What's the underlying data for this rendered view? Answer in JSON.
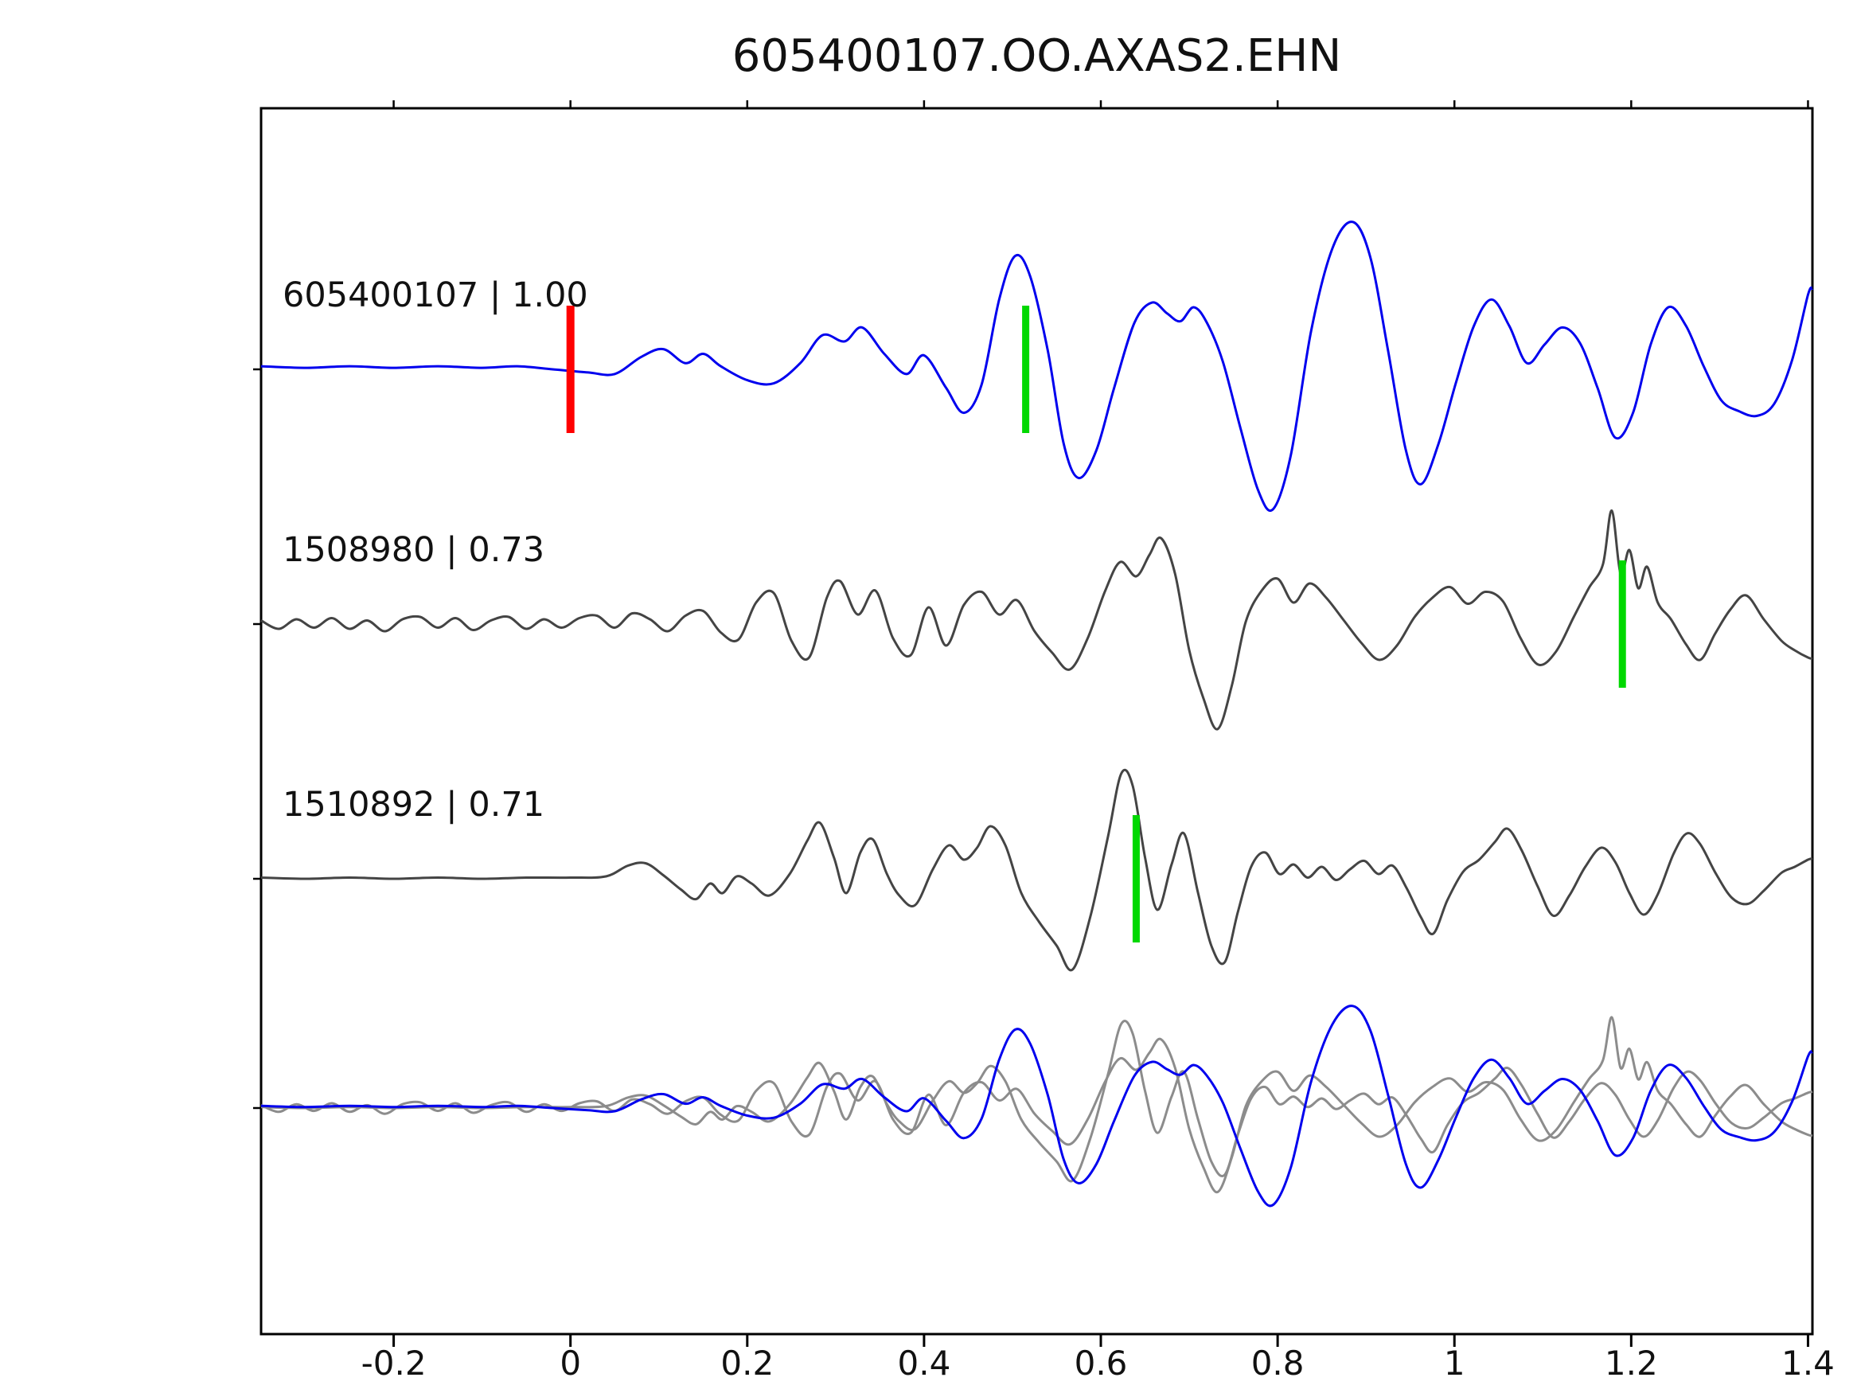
{
  "title": "605400107.OO.AXAS2.EHN",
  "colors": {
    "template_trace": "#0000ee",
    "candidate_trace": "#444444",
    "overlay_gray": "#8c8c8c",
    "pick_red": "#ff0000",
    "pick_green": "#00d800",
    "axis": "#000000"
  },
  "axis": {
    "x_range": [
      -0.35,
      1.405
    ],
    "x_ticks": [
      -0.2,
      0,
      0.2,
      0.4,
      0.6,
      0.8,
      1,
      1.2,
      1.4
    ],
    "x_tick_labels": [
      "-0.2",
      "0",
      "0.2",
      "0.4",
      "0.6",
      "0.8",
      "1",
      "1.2",
      "1.4"
    ]
  },
  "chart_data": {
    "type": "line",
    "title": "605400107.OO.AXAS2.EHN",
    "xlabel": "",
    "ylabel": "",
    "x_range": [
      -0.35,
      1.405
    ],
    "grid": false,
    "legend": "none",
    "rows": [
      {
        "kind": "single",
        "trace": "605400107"
      },
      {
        "kind": "single",
        "trace": "1508980"
      },
      {
        "kind": "single",
        "trace": "1510892"
      },
      {
        "kind": "overlay",
        "traces": [
          "1508980",
          "1510892",
          "605400107"
        ]
      }
    ],
    "traces": [
      {
        "id": "605400107",
        "label": "605400107 | 1.00",
        "correlation": "1.00",
        "role": "template",
        "picks": [
          {
            "x": 0.0,
            "color": "red"
          },
          {
            "x": 0.515,
            "color": "green"
          }
        ],
        "points": [
          [
            -0.35,
            0.02
          ],
          [
            -0.3,
            0.01
          ],
          [
            -0.25,
            0.02
          ],
          [
            -0.2,
            0.01
          ],
          [
            -0.15,
            0.02
          ],
          [
            -0.1,
            0.01
          ],
          [
            -0.06,
            0.02
          ],
          [
            -0.02,
            0.0
          ],
          [
            0.02,
            -0.02
          ],
          [
            0.05,
            -0.03
          ],
          [
            0.08,
            0.08
          ],
          [
            0.105,
            0.13
          ],
          [
            0.13,
            0.04
          ],
          [
            0.15,
            0.1
          ],
          [
            0.17,
            0.02
          ],
          [
            0.2,
            -0.07
          ],
          [
            0.23,
            -0.09
          ],
          [
            0.26,
            0.04
          ],
          [
            0.285,
            0.22
          ],
          [
            0.31,
            0.18
          ],
          [
            0.33,
            0.27
          ],
          [
            0.355,
            0.1
          ],
          [
            0.38,
            -0.03
          ],
          [
            0.4,
            0.09
          ],
          [
            0.425,
            -0.12
          ],
          [
            0.445,
            -0.28
          ],
          [
            0.465,
            -0.1
          ],
          [
            0.485,
            0.45
          ],
          [
            0.503,
            0.73
          ],
          [
            0.52,
            0.6
          ],
          [
            0.54,
            0.12
          ],
          [
            0.558,
            -0.48
          ],
          [
            0.575,
            -0.7
          ],
          [
            0.595,
            -0.52
          ],
          [
            0.615,
            -0.12
          ],
          [
            0.638,
            0.3
          ],
          [
            0.658,
            0.43
          ],
          [
            0.675,
            0.36
          ],
          [
            0.69,
            0.31
          ],
          [
            0.705,
            0.4
          ],
          [
            0.72,
            0.3
          ],
          [
            0.738,
            0.05
          ],
          [
            0.758,
            -0.38
          ],
          [
            0.778,
            -0.78
          ],
          [
            0.795,
            -0.9
          ],
          [
            0.815,
            -0.55
          ],
          [
            0.838,
            0.25
          ],
          [
            0.862,
            0.78
          ],
          [
            0.885,
            0.95
          ],
          [
            0.905,
            0.72
          ],
          [
            0.925,
            0.12
          ],
          [
            0.945,
            -0.52
          ],
          [
            0.962,
            -0.74
          ],
          [
            0.982,
            -0.48
          ],
          [
            1.002,
            -0.08
          ],
          [
            1.022,
            0.28
          ],
          [
            1.042,
            0.45
          ],
          [
            1.062,
            0.28
          ],
          [
            1.082,
            0.04
          ],
          [
            1.102,
            0.16
          ],
          [
            1.122,
            0.27
          ],
          [
            1.142,
            0.17
          ],
          [
            1.162,
            -0.12
          ],
          [
            1.182,
            -0.44
          ],
          [
            1.202,
            -0.28
          ],
          [
            1.222,
            0.16
          ],
          [
            1.242,
            0.4
          ],
          [
            1.262,
            0.28
          ],
          [
            1.282,
            0.02
          ],
          [
            1.302,
            -0.2
          ],
          [
            1.322,
            -0.27
          ],
          [
            1.342,
            -0.3
          ],
          [
            1.362,
            -0.22
          ],
          [
            1.382,
            0.06
          ],
          [
            1.4,
            0.48
          ],
          [
            1.405,
            0.52
          ]
        ]
      },
      {
        "id": "1508980",
        "label": "1508980 | 0.73",
        "correlation": "0.73",
        "role": "detection",
        "picks": [
          {
            "x": 1.19,
            "color": "green"
          }
        ],
        "points": [
          [
            -0.35,
            0.03
          ],
          [
            -0.33,
            -0.04
          ],
          [
            -0.31,
            0.04
          ],
          [
            -0.29,
            -0.03
          ],
          [
            -0.27,
            0.05
          ],
          [
            -0.25,
            -0.04
          ],
          [
            -0.23,
            0.03
          ],
          [
            -0.21,
            -0.06
          ],
          [
            -0.19,
            0.04
          ],
          [
            -0.17,
            0.06
          ],
          [
            -0.15,
            -0.03
          ],
          [
            -0.13,
            0.05
          ],
          [
            -0.11,
            -0.05
          ],
          [
            -0.09,
            0.03
          ],
          [
            -0.07,
            0.06
          ],
          [
            -0.05,
            -0.04
          ],
          [
            -0.03,
            0.04
          ],
          [
            -0.01,
            -0.03
          ],
          [
            0.01,
            0.05
          ],
          [
            0.03,
            0.07
          ],
          [
            0.05,
            -0.03
          ],
          [
            0.07,
            0.09
          ],
          [
            0.09,
            0.04
          ],
          [
            0.11,
            -0.06
          ],
          [
            0.13,
            0.07
          ],
          [
            0.15,
            0.11
          ],
          [
            0.17,
            -0.07
          ],
          [
            0.19,
            -0.13
          ],
          [
            0.21,
            0.18
          ],
          [
            0.23,
            0.26
          ],
          [
            0.25,
            -0.14
          ],
          [
            0.27,
            -0.28
          ],
          [
            0.29,
            0.22
          ],
          [
            0.305,
            0.36
          ],
          [
            0.325,
            0.08
          ],
          [
            0.345,
            0.28
          ],
          [
            0.365,
            -0.12
          ],
          [
            0.385,
            -0.26
          ],
          [
            0.405,
            0.14
          ],
          [
            0.425,
            -0.18
          ],
          [
            0.445,
            0.16
          ],
          [
            0.465,
            0.27
          ],
          [
            0.485,
            0.08
          ],
          [
            0.505,
            0.2
          ],
          [
            0.525,
            -0.06
          ],
          [
            0.545,
            -0.24
          ],
          [
            0.565,
            -0.38
          ],
          [
            0.585,
            -0.12
          ],
          [
            0.605,
            0.28
          ],
          [
            0.622,
            0.52
          ],
          [
            0.64,
            0.4
          ],
          [
            0.655,
            0.58
          ],
          [
            0.668,
            0.72
          ],
          [
            0.684,
            0.42
          ],
          [
            0.7,
            -0.22
          ],
          [
            0.716,
            -0.62
          ],
          [
            0.732,
            -0.88
          ],
          [
            0.748,
            -0.52
          ],
          [
            0.764,
            0.02
          ],
          [
            0.782,
            0.28
          ],
          [
            0.8,
            0.38
          ],
          [
            0.818,
            0.18
          ],
          [
            0.836,
            0.34
          ],
          [
            0.855,
            0.22
          ],
          [
            0.875,
            0.03
          ],
          [
            0.895,
            -0.16
          ],
          [
            0.915,
            -0.3
          ],
          [
            0.935,
            -0.18
          ],
          [
            0.955,
            0.06
          ],
          [
            0.975,
            0.22
          ],
          [
            0.995,
            0.31
          ],
          [
            1.015,
            0.17
          ],
          [
            1.035,
            0.27
          ],
          [
            1.055,
            0.19
          ],
          [
            1.075,
            -0.12
          ],
          [
            1.095,
            -0.34
          ],
          [
            1.115,
            -0.23
          ],
          [
            1.135,
            0.06
          ],
          [
            1.152,
            0.3
          ],
          [
            1.168,
            0.5
          ],
          [
            1.178,
            0.95
          ],
          [
            1.188,
            0.42
          ],
          [
            1.198,
            0.62
          ],
          [
            1.208,
            0.3
          ],
          [
            1.218,
            0.48
          ],
          [
            1.23,
            0.18
          ],
          [
            1.245,
            0.04
          ],
          [
            1.262,
            -0.17
          ],
          [
            1.278,
            -0.3
          ],
          [
            1.295,
            -0.08
          ],
          [
            1.312,
            0.12
          ],
          [
            1.33,
            0.24
          ],
          [
            1.35,
            0.04
          ],
          [
            1.37,
            -0.14
          ],
          [
            1.385,
            -0.22
          ],
          [
            1.4,
            -0.28
          ],
          [
            1.405,
            -0.29
          ]
        ]
      },
      {
        "id": "1510892",
        "label": "1510892 | 0.71",
        "correlation": "0.71",
        "role": "detection",
        "picks": [
          {
            "x": 0.64,
            "color": "green"
          }
        ],
        "points": [
          [
            -0.35,
            0.01
          ],
          [
            -0.3,
            0.0
          ],
          [
            -0.25,
            0.01
          ],
          [
            -0.2,
            0.0
          ],
          [
            -0.15,
            0.01
          ],
          [
            -0.1,
            0.0
          ],
          [
            -0.05,
            0.01
          ],
          [
            0.0,
            0.01
          ],
          [
            0.04,
            0.02
          ],
          [
            0.065,
            0.11
          ],
          [
            0.085,
            0.13
          ],
          [
            0.105,
            0.03
          ],
          [
            0.125,
            -0.09
          ],
          [
            0.142,
            -0.17
          ],
          [
            0.158,
            -0.04
          ],
          [
            0.172,
            -0.12
          ],
          [
            0.188,
            0.02
          ],
          [
            0.205,
            -0.04
          ],
          [
            0.225,
            -0.14
          ],
          [
            0.248,
            0.04
          ],
          [
            0.268,
            0.32
          ],
          [
            0.282,
            0.47
          ],
          [
            0.298,
            0.18
          ],
          [
            0.312,
            -0.12
          ],
          [
            0.328,
            0.22
          ],
          [
            0.342,
            0.33
          ],
          [
            0.358,
            0.04
          ],
          [
            0.372,
            -0.14
          ],
          [
            0.39,
            -0.22
          ],
          [
            0.41,
            0.08
          ],
          [
            0.428,
            0.28
          ],
          [
            0.445,
            0.16
          ],
          [
            0.46,
            0.26
          ],
          [
            0.475,
            0.44
          ],
          [
            0.492,
            0.28
          ],
          [
            0.51,
            -0.12
          ],
          [
            0.53,
            -0.36
          ],
          [
            0.55,
            -0.56
          ],
          [
            0.568,
            -0.76
          ],
          [
            0.588,
            -0.32
          ],
          [
            0.608,
            0.35
          ],
          [
            0.623,
            0.88
          ],
          [
            0.636,
            0.78
          ],
          [
            0.65,
            0.18
          ],
          [
            0.664,
            -0.26
          ],
          [
            0.68,
            0.12
          ],
          [
            0.694,
            0.38
          ],
          [
            0.71,
            -0.12
          ],
          [
            0.725,
            -0.56
          ],
          [
            0.74,
            -0.7
          ],
          [
            0.755,
            -0.28
          ],
          [
            0.77,
            0.1
          ],
          [
            0.786,
            0.22
          ],
          [
            0.802,
            0.04
          ],
          [
            0.818,
            0.12
          ],
          [
            0.834,
            0.01
          ],
          [
            0.85,
            0.1
          ],
          [
            0.866,
            -0.01
          ],
          [
            0.882,
            0.08
          ],
          [
            0.898,
            0.15
          ],
          [
            0.914,
            0.04
          ],
          [
            0.93,
            0.11
          ],
          [
            0.946,
            -0.08
          ],
          [
            0.962,
            -0.32
          ],
          [
            0.976,
            -0.46
          ],
          [
            0.992,
            -0.18
          ],
          [
            1.01,
            0.06
          ],
          [
            1.028,
            0.16
          ],
          [
            1.046,
            0.31
          ],
          [
            1.06,
            0.42
          ],
          [
            1.076,
            0.24
          ],
          [
            1.094,
            -0.06
          ],
          [
            1.112,
            -0.31
          ],
          [
            1.13,
            -0.14
          ],
          [
            1.148,
            0.1
          ],
          [
            1.166,
            0.26
          ],
          [
            1.182,
            0.14
          ],
          [
            1.198,
            -0.12
          ],
          [
            1.214,
            -0.3
          ],
          [
            1.23,
            -0.13
          ],
          [
            1.248,
            0.21
          ],
          [
            1.263,
            0.38
          ],
          [
            1.278,
            0.29
          ],
          [
            1.296,
            0.04
          ],
          [
            1.314,
            -0.16
          ],
          [
            1.332,
            -0.21
          ],
          [
            1.35,
            -0.1
          ],
          [
            1.37,
            0.05
          ],
          [
            1.385,
            0.1
          ],
          [
            1.4,
            0.16
          ],
          [
            1.405,
            0.17
          ]
        ]
      }
    ]
  }
}
